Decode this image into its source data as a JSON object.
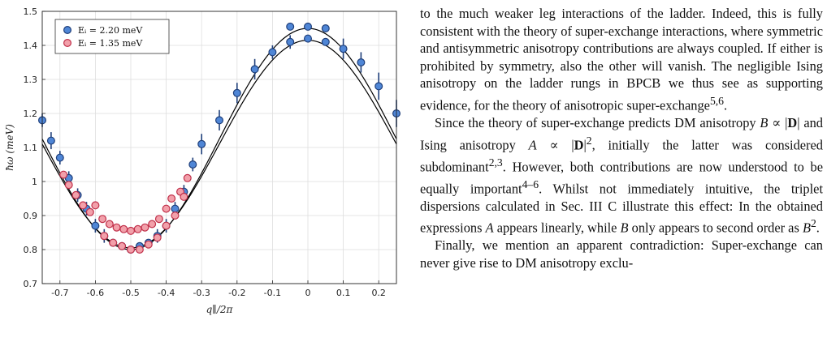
{
  "figure": {
    "colors": {
      "series_blue": "#4f86d6",
      "series_blue_edge": "#1f3f7a",
      "series_red": "#f2a0aa",
      "series_red_edge": "#c0304a",
      "fit": "#000000",
      "grid": "#dedede"
    }
  },
  "chart_data": {
    "type": "scatter",
    "xlabel": "q∥/2π",
    "ylabel": "ħω (meV)",
    "xlim": [
      -0.75,
      0.25
    ],
    "ylim": [
      0.7,
      1.5
    ],
    "xticks": [
      "-0.7",
      "-0.6",
      "-0.5",
      "-0.4",
      "-0.3",
      "-0.2",
      "-0.1",
      "0",
      "0.1",
      "0.2"
    ],
    "xtick_values": [
      -0.7,
      -0.6,
      -0.5,
      -0.4,
      -0.3,
      -0.2,
      -0.1,
      0,
      0.1,
      0.2
    ],
    "yticks": [
      "0.7",
      "0.8",
      "0.9",
      "1",
      "1.1",
      "1.2",
      "1.3",
      "1.4",
      "1.5"
    ],
    "ytick_values": [
      0.7,
      0.8,
      0.9,
      1.0,
      1.1,
      1.2,
      1.3,
      1.4,
      1.5
    ],
    "grid": true,
    "legend_position": "top-left",
    "series": [
      {
        "name": "Ei = 2.20 meV",
        "legend_label": "Eᵢ = 2.20 meV",
        "marker": "circle",
        "color": "blue",
        "points": [
          {
            "x": -0.75,
            "y": 1.18,
            "err": 0.02
          },
          {
            "x": -0.725,
            "y": 1.12,
            "err": 0.025
          },
          {
            "x": -0.7,
            "y": 1.07,
            "err": 0.02
          },
          {
            "x": -0.675,
            "y": 1.01,
            "err": 0.02
          },
          {
            "x": -0.65,
            "y": 0.96,
            "err": 0.02
          },
          {
            "x": -0.625,
            "y": 0.92,
            "err": 0.02
          },
          {
            "x": -0.6,
            "y": 0.87,
            "err": 0.02
          },
          {
            "x": -0.575,
            "y": 0.84,
            "err": 0.02
          },
          {
            "x": -0.55,
            "y": 0.82,
            "err": 0.01
          },
          {
            "x": -0.525,
            "y": 0.81,
            "err": 0.01
          },
          {
            "x": -0.5,
            "y": 0.8,
            "err": 0.01
          },
          {
            "x": -0.475,
            "y": 0.81,
            "err": 0.01
          },
          {
            "x": -0.45,
            "y": 0.82,
            "err": 0.01
          },
          {
            "x": -0.425,
            "y": 0.84,
            "err": 0.02
          },
          {
            "x": -0.4,
            "y": 0.87,
            "err": 0.02
          },
          {
            "x": -0.375,
            "y": 0.92,
            "err": 0.02
          },
          {
            "x": -0.35,
            "y": 0.97,
            "err": 0.02
          },
          {
            "x": -0.325,
            "y": 1.05,
            "err": 0.02
          },
          {
            "x": -0.3,
            "y": 1.11,
            "err": 0.03
          },
          {
            "x": -0.25,
            "y": 1.18,
            "err": 0.03
          },
          {
            "x": -0.2,
            "y": 1.26,
            "err": 0.03
          },
          {
            "x": -0.15,
            "y": 1.33,
            "err": 0.03
          },
          {
            "x": -0.1,
            "y": 1.38,
            "err": 0.02
          },
          {
            "x": -0.05,
            "y": 1.41,
            "err": 0.02
          },
          {
            "x": -0.05,
            "y": 1.455,
            "err": 0.01
          },
          {
            "x": 0.0,
            "y": 1.42,
            "err": 0.01
          },
          {
            "x": 0.0,
            "y": 1.455,
            "err": 0.01
          },
          {
            "x": 0.05,
            "y": 1.41,
            "err": 0.01
          },
          {
            "x": 0.05,
            "y": 1.45,
            "err": 0.01
          },
          {
            "x": 0.1,
            "y": 1.39,
            "err": 0.03
          },
          {
            "x": 0.15,
            "y": 1.35,
            "err": 0.03
          },
          {
            "x": 0.2,
            "y": 1.28,
            "err": 0.04
          },
          {
            "x": 0.25,
            "y": 1.2,
            "err": 0.04
          }
        ]
      },
      {
        "name": "Ei = 1.35 meV",
        "legend_label": "Eᵢ = 1.35 meV",
        "marker": "circle",
        "color": "red",
        "points": [
          {
            "x": -0.69,
            "y": 1.02,
            "err": 0.01
          },
          {
            "x": -0.675,
            "y": 0.99,
            "err": 0.01
          },
          {
            "x": -0.655,
            "y": 0.96,
            "err": 0.01
          },
          {
            "x": -0.635,
            "y": 0.93,
            "err": 0.01
          },
          {
            "x": -0.615,
            "y": 0.91,
            "err": 0.01
          },
          {
            "x": -0.6,
            "y": 0.93,
            "err": 0.01
          },
          {
            "x": -0.58,
            "y": 0.89,
            "err": 0.01
          },
          {
            "x": -0.575,
            "y": 0.84,
            "err": 0.01
          },
          {
            "x": -0.56,
            "y": 0.875,
            "err": 0.01
          },
          {
            "x": -0.55,
            "y": 0.82,
            "err": 0.01
          },
          {
            "x": -0.54,
            "y": 0.865,
            "err": 0.01
          },
          {
            "x": -0.525,
            "y": 0.81,
            "err": 0.01
          },
          {
            "x": -0.52,
            "y": 0.86,
            "err": 0.01
          },
          {
            "x": -0.5,
            "y": 0.8,
            "err": 0.01
          },
          {
            "x": -0.5,
            "y": 0.855,
            "err": 0.01
          },
          {
            "x": -0.48,
            "y": 0.86,
            "err": 0.01
          },
          {
            "x": -0.475,
            "y": 0.8,
            "err": 0.01
          },
          {
            "x": -0.46,
            "y": 0.865,
            "err": 0.01
          },
          {
            "x": -0.45,
            "y": 0.815,
            "err": 0.01
          },
          {
            "x": -0.44,
            "y": 0.875,
            "err": 0.01
          },
          {
            "x": -0.425,
            "y": 0.835,
            "err": 0.01
          },
          {
            "x": -0.42,
            "y": 0.89,
            "err": 0.01
          },
          {
            "x": -0.4,
            "y": 0.87,
            "err": 0.01
          },
          {
            "x": -0.4,
            "y": 0.92,
            "err": 0.01
          },
          {
            "x": -0.385,
            "y": 0.95,
            "err": 0.01
          },
          {
            "x": -0.375,
            "y": 0.9,
            "err": 0.01
          },
          {
            "x": -0.36,
            "y": 0.97,
            "err": 0.01
          },
          {
            "x": -0.35,
            "y": 0.955,
            "err": 0.01
          },
          {
            "x": -0.34,
            "y": 1.01,
            "err": 0.01
          }
        ]
      }
    ],
    "fits": [
      {
        "name": "fit-upper",
        "type": "line"
      },
      {
        "name": "fit-lower",
        "type": "line"
      }
    ]
  },
  "text": {
    "paragraphs": [
      {
        "indent": false,
        "html": "to the much weaker leg interactions of the ladder. Indeed, this is fully consistent with the theory of super-exchange interactions, where symmetric and antisymmetric anisotropy contributions are always coupled. If either is prohibited by symmetry, also the other will vanish. The negligible Ising anisotropy on the ladder rungs in BPCB we thus see as supporting evidence, for the theory of anisotropic super-exchange<sup>5,6</sup>."
      },
      {
        "indent": true,
        "html": "Since the theory of super-exchange predicts DM anisotropy <i>B</i> ∝ |<b>D</b>| and Ising anisotropy <i>A</i> ∝ |<b>D</b>|<sup>2</sup>, initially the latter was considered subdominant<sup>2,3</sup>. However, both contributions are now understood to be equally important<sup>4–6</sup>. Whilst not immediately intuitive, the triplet dispersions calculated in Sec. III C illustrate this effect: In the obtained expressions <i>A</i> appears linearly, while <i>B</i> only appears to second order as <i>B</i><sup>2</sup>."
      },
      {
        "indent": true,
        "html": "Finally, we mention an apparent contradiction: Super-exchange can never give rise to DM anisotropy exclu-"
      }
    ]
  }
}
